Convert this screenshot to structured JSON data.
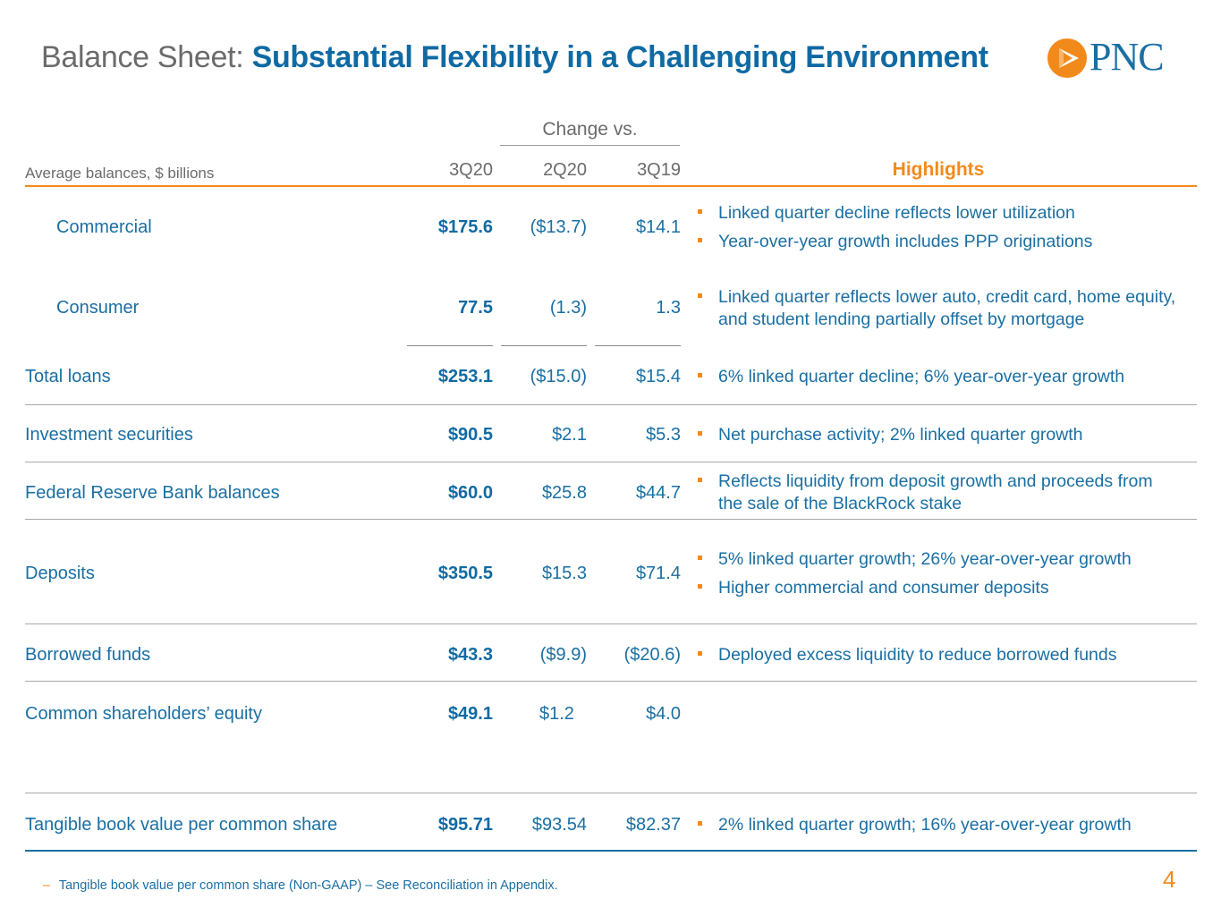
{
  "title": {
    "lead": "Balance Sheet:",
    "main": "Substantial Flexibility in a Challenging Environment"
  },
  "logo": {
    "text": "PNC",
    "icon": "pnc-triangle-icon"
  },
  "table": {
    "group_header": "Change vs.",
    "label_header": "Average balances, $ billions",
    "col1": "3Q20",
    "col2": "2Q20",
    "col3": "3Q19",
    "highlights_header": "Highlights",
    "rows": [
      {
        "label": "Commercial",
        "v1": "$175.6",
        "v2": "($13.7)",
        "v3": "$14.1",
        "highlights": [
          "Linked quarter decline reflects lower utilization",
          "Year-over-year growth includes PPP originations"
        ]
      },
      {
        "label": "Consumer",
        "v1": "77.5",
        "v2": "(1.3)",
        "v3": "1.3",
        "highlights": [
          "Linked quarter reflects lower auto, credit card, home equity,",
          "and student lending partially offset by mortgage"
        ]
      },
      {
        "label": "Total loans",
        "v1": "$253.1",
        "v2": "($15.0)",
        "v3": "$15.4",
        "highlights": [
          "6% linked quarter decline; 6% year-over-year growth"
        ]
      },
      {
        "label": "Investment securities",
        "v1": "$90.5",
        "v2": "$2.1",
        "v3": "$5.3",
        "highlights": [
          "Net purchase activity; 2% linked quarter growth"
        ]
      },
      {
        "label": "Federal Reserve Bank balances",
        "v1": "$60.0",
        "v2": "$25.8",
        "v3": "$44.7",
        "highlights": [
          "Reflects liquidity from deposit growth and proceeds from",
          "the sale of the BlackRock stake"
        ]
      },
      {
        "label": "Deposits",
        "v1": "$350.5",
        "v2": "$15.3",
        "v3": "$71.4",
        "highlights": [
          "5% linked quarter growth; 26% year-over-year growth",
          "Higher commercial and consumer deposits"
        ]
      },
      {
        "label": "Borrowed funds",
        "v1": "$43.3",
        "v2": "($9.9)",
        "v3": "($20.6)",
        "highlights": [
          "Deployed excess liquidity to reduce borrowed funds"
        ]
      },
      {
        "label": "Common shareholders’ equity",
        "v1": "$49.1",
        "v2": "$1.2",
        "v3": "$4.0",
        "highlights": []
      },
      {
        "label": "Tangible book value per common share",
        "v1": "$95.71",
        "v2": "$93.54",
        "v3": "$82.37",
        "highlights": [
          "2% linked quarter growth; 16% year-over-year growth"
        ]
      }
    ]
  },
  "footnote": {
    "dash": "–",
    "text": "Tangible book value per common share (Non-GAAP) – See Reconciliation in Appendix."
  },
  "page_number": "4",
  "colors": {
    "accent": "#f28a1b",
    "brand_blue": "#1a6fa3",
    "title_gray": "#6b6b6b"
  }
}
